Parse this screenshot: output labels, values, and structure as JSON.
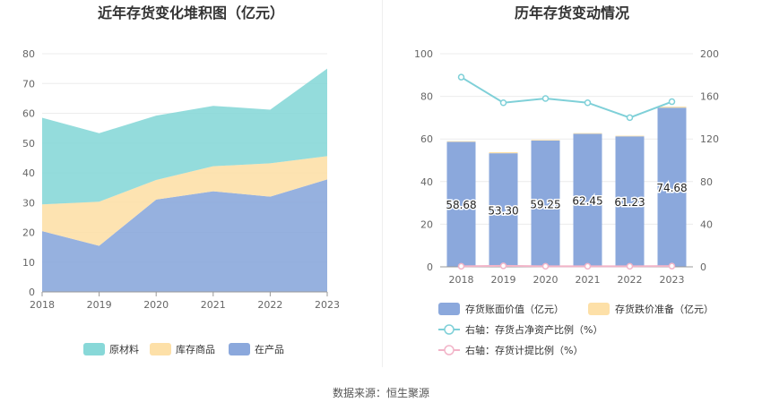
{
  "source_text": "数据来源：恒生聚源",
  "chart_data": [
    {
      "type": "area",
      "stacked": true,
      "title": "近年存货变化堆积图（亿元）",
      "categories": [
        "2018",
        "2019",
        "2020",
        "2021",
        "2022",
        "2023"
      ],
      "ylim": [
        0,
        80
      ],
      "yticks": [
        "0",
        "10",
        "20",
        "30",
        "40",
        "50",
        "60",
        "70",
        "80"
      ],
      "grid": true,
      "legend_position": "bottom",
      "series": [
        {
          "name": "在产品",
          "color": "#8ba8dc",
          "values": [
            20.4,
            15.5,
            31.0,
            33.8,
            32.0,
            37.8
          ]
        },
        {
          "name": "库存商品",
          "color": "#fde0a8",
          "values": [
            9.0,
            14.8,
            6.6,
            8.4,
            11.2,
            7.8
          ]
        },
        {
          "name": "原材料",
          "color": "#88d8d8",
          "values": [
            29.1,
            23.0,
            21.6,
            20.3,
            18.0,
            29.4
          ]
        }
      ],
      "legend_order": [
        "原材料",
        "库存商品",
        "在产品"
      ]
    },
    {
      "type": "bar",
      "stacked": true,
      "title": "历年存货变动情况",
      "categories": [
        "2018",
        "2019",
        "2020",
        "2021",
        "2022",
        "2023"
      ],
      "ylim": [
        0,
        100
      ],
      "yticks": [
        "0",
        "20",
        "40",
        "60",
        "80",
        "100"
      ],
      "y2lim": [
        0,
        200
      ],
      "y2ticks": [
        "0",
        "40",
        "80",
        "120",
        "160",
        "200"
      ],
      "grid": true,
      "legend_position": "bottom",
      "series": [
        {
          "name": "存货账面价值（亿元）",
          "type": "bar",
          "axis": "left",
          "color": "#8ba8dc",
          "values": [
            58.68,
            53.3,
            59.25,
            62.45,
            61.23,
            74.68
          ],
          "labels": [
            "58.68",
            "53.30",
            "59.25",
            "62.45",
            "61.23",
            "74.68"
          ]
        },
        {
          "name": "存货跌价准备（亿元）",
          "type": "bar",
          "axis": "left",
          "color": "#fde0a8",
          "values": [
            0.3,
            0.5,
            0.3,
            0.3,
            0.3,
            0.5
          ]
        },
        {
          "name": "右轴：存货占净资产比例（%）",
          "type": "line",
          "axis": "right",
          "color": "#7fd0d8",
          "values": [
            178,
            154,
            158,
            154,
            140,
            155
          ]
        },
        {
          "name": "右轴：存货计提比例（%）",
          "type": "line",
          "axis": "right",
          "color": "#f2b4c8",
          "values": [
            0.5,
            0.9,
            0.5,
            0.5,
            0.5,
            0.7
          ]
        }
      ]
    }
  ]
}
